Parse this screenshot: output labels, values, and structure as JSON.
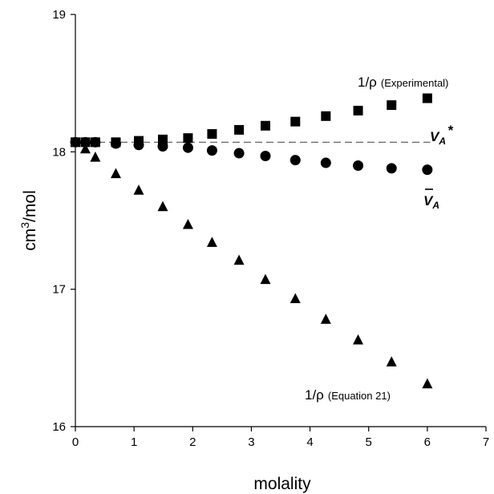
{
  "chart_data": {
    "type": "scatter",
    "xlabel": "molality",
    "ylabel_base": "cm",
    "ylabel_sup": "3",
    "ylabel_tail": "/mol",
    "xlim": [
      0,
      7
    ],
    "ylim": [
      16,
      19
    ],
    "xticks": [
      "0",
      "1",
      "2",
      "3",
      "4",
      "5",
      "6",
      "7"
    ],
    "yticks": [
      "16",
      "17",
      "18",
      "19"
    ],
    "grid": false,
    "series": [
      {
        "marker": "square",
        "x": [
          0,
          0.17,
          0.34,
          0.69,
          1.08,
          1.49,
          1.92,
          2.33,
          2.79,
          3.24,
          3.75,
          4.27,
          4.82,
          5.39,
          6.0
        ],
        "y": [
          18.07,
          18.07,
          18.07,
          18.07,
          18.08,
          18.09,
          18.1,
          18.13,
          18.16,
          18.19,
          18.22,
          18.26,
          18.3,
          18.34,
          18.39
        ]
      },
      {
        "marker": "circle",
        "x": [
          0,
          0.17,
          0.34,
          0.69,
          1.08,
          1.49,
          1.92,
          2.33,
          2.79,
          3.24,
          3.75,
          4.27,
          4.82,
          5.39,
          6.0
        ],
        "y": [
          18.07,
          18.07,
          18.07,
          18.06,
          18.05,
          18.04,
          18.03,
          18.01,
          17.99,
          17.97,
          17.94,
          17.92,
          17.9,
          17.88,
          17.87
        ]
      },
      {
        "marker": "triangle",
        "x": [
          0.17,
          0.34,
          0.69,
          1.08,
          1.49,
          1.92,
          2.33,
          2.79,
          3.24,
          3.75,
          4.27,
          4.82,
          5.39,
          6.0
        ],
        "y": [
          18.02,
          17.96,
          17.84,
          17.72,
          17.6,
          17.47,
          17.34,
          17.21,
          17.07,
          16.93,
          16.78,
          16.63,
          16.47,
          16.31
        ]
      }
    ],
    "reference_line": {
      "y": 18.07,
      "style": "dashed"
    },
    "annotations": {
      "experimental_main": "1/ρ",
      "experimental_sub": "(Experimental)",
      "va_star_main": "V",
      "va_star_sub": "A",
      "va_star_tail": "*",
      "va_bar_main": "V",
      "va_bar_sub": "A",
      "equation_main": "1/ρ",
      "equation_sub": "(Equation 21)"
    }
  }
}
